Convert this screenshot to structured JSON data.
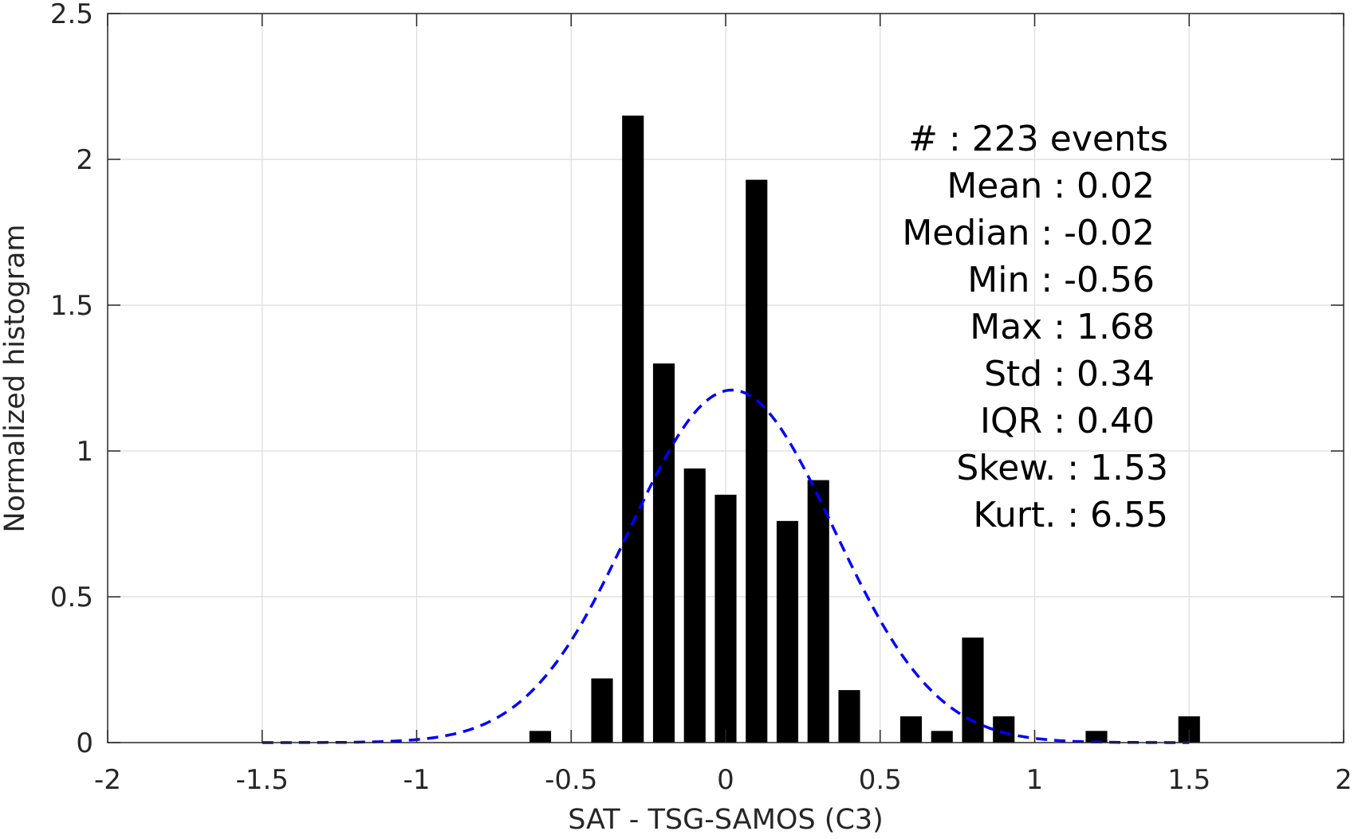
{
  "chart_data": {
    "type": "bar",
    "xlabel": "SAT - TSG-SAMOS (C3)",
    "ylabel": "Normalized histogram",
    "xlim": [
      -2,
      2
    ],
    "ylim": [
      0,
      2.5
    ],
    "xticks": [
      -2,
      -1.5,
      -1,
      -0.5,
      0,
      0.5,
      1,
      1.5,
      2
    ],
    "xtick_labels": [
      "-2",
      "-1.5",
      "-1",
      "-0.5",
      "0",
      "0.5",
      "1",
      "1.5",
      "2"
    ],
    "yticks": [
      0,
      0.5,
      1,
      1.5,
      2,
      2.5
    ],
    "ytick_labels": [
      "0",
      "0.5",
      "1",
      "1.5",
      "2",
      "2.5"
    ],
    "grid": true,
    "bar_width": 0.07,
    "bars": [
      {
        "x": -0.6,
        "y": 0.04
      },
      {
        "x": -0.4,
        "y": 0.22
      },
      {
        "x": -0.3,
        "y": 2.15
      },
      {
        "x": -0.2,
        "y": 1.3
      },
      {
        "x": -0.1,
        "y": 0.94
      },
      {
        "x": 0.0,
        "y": 0.85
      },
      {
        "x": 0.1,
        "y": 1.93
      },
      {
        "x": 0.2,
        "y": 0.76
      },
      {
        "x": 0.3,
        "y": 0.9
      },
      {
        "x": 0.4,
        "y": 0.18
      },
      {
        "x": 0.6,
        "y": 0.09
      },
      {
        "x": 0.7,
        "y": 0.04
      },
      {
        "x": 0.8,
        "y": 0.36
      },
      {
        "x": 0.9,
        "y": 0.09
      },
      {
        "x": 1.2,
        "y": 0.04
      },
      {
        "x": 1.5,
        "y": 0.09
      }
    ],
    "fit_curve": {
      "style": "dashed",
      "color": "#0000ff",
      "mean": 0.02,
      "std": 0.33,
      "x_range": [
        -1.5,
        1.5
      ]
    },
    "bar_color": "#000000",
    "stats": [
      {
        "key": "#  ",
        "value": "223 events"
      },
      {
        "key": "Mean",
        "value": "0.02"
      },
      {
        "key": "Median",
        "value": "-0.02"
      },
      {
        "key": "Min",
        "value": "-0.56"
      },
      {
        "key": "Max",
        "value": "1.68"
      },
      {
        "key": "Std",
        "value": "0.34"
      },
      {
        "key": "IQR",
        "value": "0.40"
      },
      {
        "key": "Skew.",
        "value": "1.53"
      },
      {
        "key": "Kurt.",
        "value": "6.55"
      }
    ]
  }
}
